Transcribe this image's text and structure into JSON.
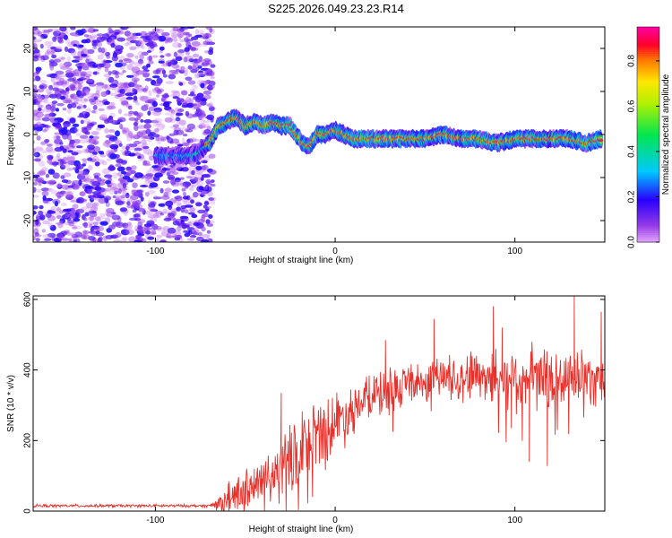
{
  "title": "S225.2026.049.23.23.R14",
  "chart_data": [
    {
      "type": "heatmap",
      "title": "S225.2026.049.23.23.R14",
      "xlabel": "Height of straight line (km)",
      "ylabel": "Frequency (Hz)",
      "xlim": [
        -168,
        150
      ],
      "ylim": [
        -25,
        25
      ],
      "xticks": [
        -100,
        0,
        100
      ],
      "yticks": [
        -20,
        -10,
        0,
        10,
        20
      ],
      "noise_region_x": [
        -168,
        -68
      ],
      "ridge": {
        "x": [
          -100,
          -90,
          -80,
          -75,
          -70,
          -65,
          -60,
          -55,
          -50,
          -45,
          -40,
          -35,
          -30,
          -25,
          -20,
          -15,
          -10,
          -5,
          0,
          10,
          20,
          30,
          40,
          50,
          60,
          70,
          80,
          90,
          100,
          110,
          120,
          130,
          140,
          148
        ],
        "y": [
          -5,
          -5,
          -5,
          -4,
          -2,
          2,
          3,
          4,
          2,
          3,
          2,
          3,
          2,
          2,
          -1,
          -3,
          0,
          0,
          1,
          -1,
          -1,
          -1,
          -1,
          -1,
          0,
          -1,
          -1,
          -2,
          -1,
          -1,
          -1,
          -1,
          -2,
          -1
        ]
      },
      "colorbar": {
        "label": "Normalized spectral amplitude",
        "range": [
          0.0,
          0.95
        ],
        "ticks": [
          "0.0",
          "0.2",
          "0.4",
          "0.6",
          "0.8"
        ],
        "tick_values": [
          0.0,
          0.2,
          0.4,
          0.6,
          0.8
        ]
      },
      "colors": {
        "noise": "#8a2be2",
        "ridge_core": "#ff2a2a",
        "ridge_edge": "#0000ff"
      }
    },
    {
      "type": "line",
      "xlabel": "Height of straight line (km)",
      "ylabel": "SNR (10 * v/v)",
      "xlim": [
        -168,
        150
      ],
      "ylim": [
        0,
        610
      ],
      "xticks": [
        -100,
        0,
        100
      ],
      "yticks": [
        0,
        200,
        400,
        600
      ],
      "series": [
        {
          "name": "SNR",
          "color": "#e8302a",
          "trend_x": [
            -168,
            -70,
            -60,
            -50,
            -40,
            -30,
            -20,
            -10,
            0,
            10,
            20,
            30,
            40,
            50,
            60,
            70,
            80,
            90,
            100,
            110,
            120,
            130,
            140,
            150
          ],
          "trend_y": [
            15,
            15,
            30,
            60,
            80,
            120,
            170,
            210,
            250,
            290,
            320,
            340,
            360,
            370,
            380,
            385,
            390,
            385,
            380,
            375,
            370,
            375,
            380,
            385
          ],
          "noise_y": [
            5,
            5,
            50,
            70,
            100,
            110,
            130,
            130,
            110,
            90,
            80,
            80,
            70,
            70,
            75,
            80,
            90,
            100,
            110,
            110,
            110,
            100,
            100,
            100
          ],
          "peaks": [
            {
              "x": -59,
              "y": 85
            },
            {
              "x": -45,
              "y": 120
            },
            {
              "x": -30,
              "y": 335
            },
            {
              "x": 8,
              "y": 295
            },
            {
              "x": 28,
              "y": 485
            },
            {
              "x": 55,
              "y": 545
            },
            {
              "x": 88,
              "y": 580
            },
            {
              "x": 93,
              "y": 520
            },
            {
              "x": 133,
              "y": 610
            },
            {
              "x": 148,
              "y": 565
            },
            {
              "x": 98,
              "y": 235
            },
            {
              "x": 118,
              "y": 128
            },
            {
              "x": 108,
              "y": 140
            }
          ]
        }
      ]
    }
  ]
}
